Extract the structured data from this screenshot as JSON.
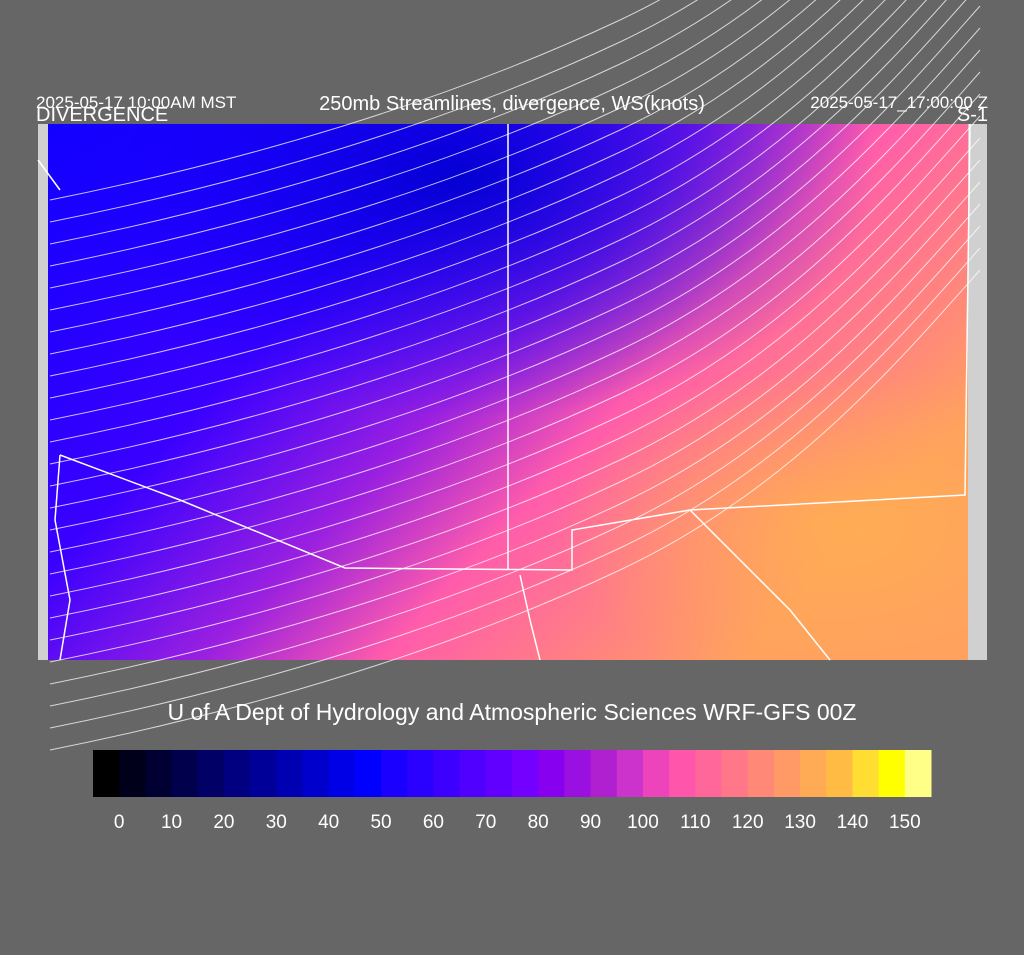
{
  "header": {
    "local_time": "2025-05-17 10:00AM MST",
    "title": "250mb Streamlines, divergence, WS(knots)",
    "utc_time": "2025-05-17_17:00:00 Z",
    "field_label": "DIVERGENCE",
    "run_label": "S-1"
  },
  "footer": {
    "credit": "U of A Dept of Hydrology and Atmospheric Sciences WRF-GFS 00Z"
  },
  "colorbar": {
    "colors": [
      "#000000",
      "#00001a",
      "#000033",
      "#00004d",
      "#000066",
      "#000080",
      "#000099",
      "#0000b3",
      "#0000cc",
      "#0000e6",
      "#0000ff",
      "#1a00ff",
      "#2a00ff",
      "#3d00ff",
      "#5000ff",
      "#6200ff",
      "#7400ff",
      "#8800f0",
      "#9a10e0",
      "#b020d0",
      "#cc33cc",
      "#ee44bb",
      "#ff55aa",
      "#ff6699",
      "#ff7788",
      "#ff8877",
      "#ff9966",
      "#ffaa55",
      "#ffbb44",
      "#ffdd33",
      "#ffff00",
      "#ffff88"
    ],
    "ticks": [
      0,
      10,
      20,
      30,
      40,
      50,
      60,
      70,
      80,
      90,
      100,
      110,
      120,
      130,
      140,
      150
    ]
  }
}
